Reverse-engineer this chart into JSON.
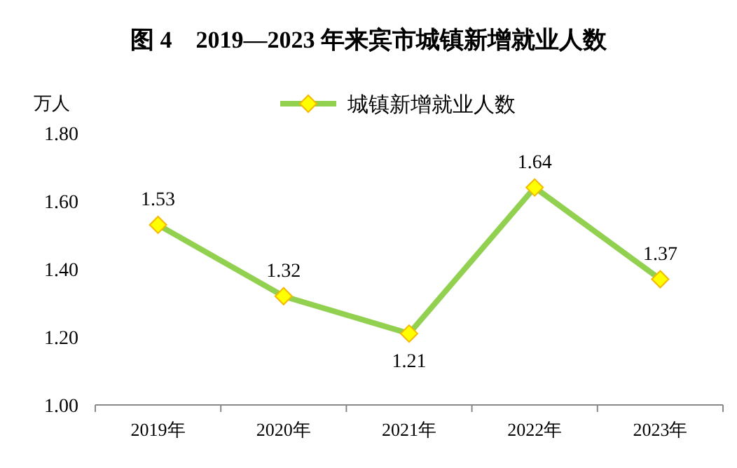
{
  "chart_data": {
    "type": "line",
    "title": "图 4　2019—2023 年来宾市城镇新增就业人数",
    "ylabel": "万人",
    "categories": [
      "2019年",
      "2020年",
      "2021年",
      "2022年",
      "2023年"
    ],
    "series": [
      {
        "name": "城镇新增就业人数",
        "color": "#92d050",
        "values": [
          1.53,
          1.32,
          1.21,
          1.64,
          1.37
        ]
      }
    ],
    "ylim": [
      1.0,
      1.8
    ],
    "yticks": [
      {
        "value": 1.0,
        "label": "1.00"
      },
      {
        "value": 1.2,
        "label": "1.20"
      },
      {
        "value": 1.4,
        "label": "1.40"
      },
      {
        "value": 1.6,
        "label": "1.60"
      },
      {
        "value": 1.8,
        "label": "1.80"
      }
    ],
    "grid": false,
    "legend": "top",
    "marker": "diamond",
    "data_labels": true
  }
}
